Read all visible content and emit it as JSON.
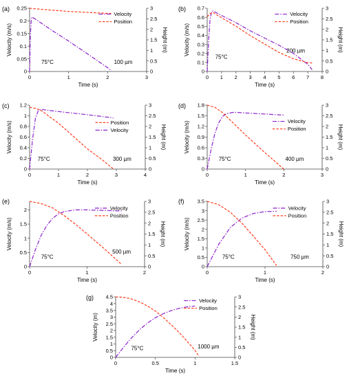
{
  "colors": {
    "velocity": "#8B1FCB",
    "position": "#FF3B1A",
    "axis": "#444444"
  },
  "chart_data": [
    {
      "type": "line",
      "panel_label": "(a)",
      "xlabel": "Time (s)",
      "ylabel_left": "Velocity (m/s)",
      "ylabel_right": "Height (m)",
      "xlim": [
        0,
        3
      ],
      "xticks": [
        "0",
        "1",
        "2",
        "3"
      ],
      "ylim_left": [
        0,
        0.25
      ],
      "yticks_left": [
        "0",
        "0.05",
        "0.1",
        "0.15",
        "0.2",
        "0.25"
      ],
      "ylim_right": [
        0,
        3
      ],
      "yticks_right": [
        "0",
        "0.5",
        "1",
        "1.5",
        "2",
        "2.5",
        "3"
      ],
      "temperature": "75°C",
      "size": "100 µm",
      "legend_position": "top-right",
      "legend": [
        "Velocity",
        "Position"
      ],
      "series": [
        {
          "name": "Velocity",
          "axis": "left",
          "x": [
            0,
            0.02,
            0.04,
            0.06,
            0.08,
            0.12,
            0.5,
            1.0,
            1.5,
            2.0,
            2.1
          ],
          "y": [
            0,
            0.14,
            0.2,
            0.215,
            0.213,
            0.21,
            0.17,
            0.12,
            0.068,
            0.015,
            0.003
          ]
        },
        {
          "name": "Position",
          "axis": "right",
          "x": [
            0,
            0.5,
            1.0,
            1.5,
            2.0,
            2.1
          ],
          "y": [
            3.0,
            2.92,
            2.85,
            2.8,
            2.76,
            2.75
          ]
        }
      ]
    },
    {
      "type": "line",
      "panel_label": "(b)",
      "xlabel": "Time (s)",
      "ylabel_left": "Velocity (m/s)",
      "ylabel_right": "Height (m)",
      "xlim": [
        0,
        8
      ],
      "xticks": [
        "0",
        "1",
        "2",
        "3",
        "4",
        "5",
        "6",
        "7",
        "8"
      ],
      "ylim_left": [
        0,
        0.7
      ],
      "yticks_left": [
        "0",
        "0.1",
        "0.2",
        "0.3",
        "0.4",
        "0.5",
        "0.6",
        "0.7"
      ],
      "ylim_right": [
        0,
        3
      ],
      "yticks_right": [
        "0",
        "0.5",
        "1",
        "1.5",
        "2",
        "2.5",
        "3"
      ],
      "temperature": "75°C",
      "size": "200 µm",
      "legend_position": "top-right",
      "legend": [
        "Velocity",
        "Position"
      ],
      "series": [
        {
          "name": "Velocity",
          "axis": "left",
          "x": [
            0,
            0.1,
            0.2,
            0.3,
            0.4,
            1,
            2,
            3,
            4,
            5,
            6,
            7,
            7.3
          ],
          "y": [
            0,
            0.35,
            0.58,
            0.66,
            0.67,
            0.62,
            0.54,
            0.45,
            0.37,
            0.29,
            0.2,
            0.08,
            0.02
          ]
        },
        {
          "name": "Position",
          "axis": "right",
          "x": [
            0,
            0.2,
            0.4,
            1,
            2,
            3,
            4,
            5,
            6,
            7,
            7.3
          ],
          "y": [
            2.6,
            2.75,
            2.8,
            2.55,
            2.15,
            1.7,
            1.3,
            0.9,
            0.6,
            0.42,
            0.4
          ]
        }
      ]
    },
    {
      "type": "line",
      "panel_label": "(c)",
      "xlabel": "Time (s)",
      "ylabel_left": "Velocity (m/s)",
      "ylabel_right": "Height (m)",
      "xlim": [
        0,
        4
      ],
      "xticks": [
        "0",
        "1",
        "2",
        "3",
        "4"
      ],
      "ylim_left": [
        0,
        1.2
      ],
      "yticks_left": [
        "0",
        "0.2",
        "0.4",
        "0.6",
        "0.8",
        "1",
        "1.2"
      ],
      "ylim_right": [
        0,
        3
      ],
      "yticks_right": [
        "0",
        "0.5",
        "1",
        "1.5",
        "2",
        "2.5",
        "3"
      ],
      "temperature": "75°C",
      "size": "300 µm",
      "legend_position": "right",
      "legend": [
        "Position",
        "Velocity"
      ],
      "series": [
        {
          "name": "Velocity",
          "axis": "left",
          "x": [
            0,
            0.1,
            0.2,
            0.3,
            0.4,
            1.0,
            2.0,
            2.9
          ],
          "y": [
            0,
            0.55,
            0.95,
            1.1,
            1.12,
            1.08,
            1.02,
            0.96
          ]
        },
        {
          "name": "Position",
          "axis": "right",
          "x": [
            0,
            0.2,
            0.4,
            1.0,
            1.5,
            2.0,
            2.5,
            2.9
          ],
          "y": [
            2.9,
            2.85,
            2.75,
            2.15,
            1.55,
            0.95,
            0.45,
            0.0
          ]
        }
      ]
    },
    {
      "type": "line",
      "panel_label": "(d)",
      "xlabel": "Time (s)",
      "ylabel_left": "Velocity (m/s)",
      "ylabel_right": "Height (m)",
      "xlim": [
        0,
        3
      ],
      "xticks": [
        "0",
        "1",
        "2",
        "3"
      ],
      "ylim_left": [
        0,
        1.8
      ],
      "yticks_left": [
        "0",
        "0.3",
        "0.6",
        "0.9",
        "1.2",
        "1.5",
        "1.8"
      ],
      "ylim_right": [
        0,
        3
      ],
      "yticks_right": [
        "0",
        "0.5",
        "1",
        "1.5",
        "2",
        "2.5",
        "3"
      ],
      "temperature": "75°C",
      "size": "400 µm",
      "legend_position": "right",
      "legend": [
        "Velocity",
        "Position"
      ],
      "series": [
        {
          "name": "Velocity",
          "axis": "left",
          "x": [
            0,
            0.1,
            0.2,
            0.3,
            0.4,
            0.5,
            0.7,
            1.0,
            1.5,
            2.0
          ],
          "y": [
            0,
            0.55,
            1.0,
            1.3,
            1.48,
            1.56,
            1.6,
            1.58,
            1.55,
            1.52
          ]
        },
        {
          "name": "Position",
          "axis": "right",
          "x": [
            0,
            0.2,
            0.4,
            0.6,
            1.0,
            1.5,
            2.0
          ],
          "y": [
            3.0,
            2.9,
            2.65,
            2.3,
            1.6,
            0.78,
            0.0
          ]
        }
      ]
    },
    {
      "type": "line",
      "panel_label": "(e)",
      "xlabel": "Time (s)",
      "ylabel_left": "Velocity (m/s)",
      "ylabel_right": "Height (m)",
      "xlim": [
        0,
        2
      ],
      "xticks": [
        "0",
        "1",
        "2"
      ],
      "ylim_left": [
        0,
        2.3
      ],
      "yticks_left": [
        "0",
        "0.5",
        "1",
        "1.5",
        "2"
      ],
      "ylim_right": [
        0,
        3
      ],
      "yticks_right": [
        "0",
        "0.5",
        "1",
        "1.5",
        "2",
        "2.5",
        "3"
      ],
      "temperature": "75°C",
      "size": "500 µm",
      "legend_position": "top-right",
      "legend": [
        "Velocity",
        "Position"
      ],
      "series": [
        {
          "name": "Velocity",
          "axis": "left",
          "x": [
            0,
            0.1,
            0.2,
            0.3,
            0.4,
            0.5,
            0.6,
            0.8,
            1.0,
            1.3,
            1.6
          ],
          "y": [
            0,
            0.6,
            1.1,
            1.45,
            1.7,
            1.86,
            1.94,
            2.0,
            2.0,
            1.98,
            1.96
          ]
        },
        {
          "name": "Position",
          "axis": "right",
          "x": [
            0,
            0.2,
            0.4,
            0.6,
            0.8,
            1.0,
            1.3,
            1.6
          ],
          "y": [
            3.0,
            2.9,
            2.7,
            2.35,
            1.95,
            1.5,
            0.82,
            0.1
          ]
        }
      ]
    },
    {
      "type": "line",
      "panel_label": "(f)",
      "xlabel": "Time (s)",
      "ylabel_left": "Velocity (m/s)",
      "ylabel_right": "Height (m)",
      "xlim": [
        0,
        2
      ],
      "xticks": [
        "0",
        "1",
        "2"
      ],
      "ylim_left": [
        0,
        3.5
      ],
      "yticks_left": [
        "0",
        "0.5",
        "1",
        "1.5",
        "2",
        "2.5",
        "3",
        "3.5"
      ],
      "ylim_right": [
        0,
        3
      ],
      "yticks_right": [
        "0",
        "0.5",
        "1",
        "1.5",
        "2",
        "2.5",
        "3"
      ],
      "temperature": "75°C",
      "size": "750 µm",
      "legend_position": "top-right",
      "legend": [
        "Velocity",
        "Position"
      ],
      "series": [
        {
          "name": "Velocity",
          "axis": "left",
          "x": [
            0,
            0.2,
            0.4,
            0.6,
            0.8,
            1.0,
            1.2
          ],
          "y": [
            0,
            1.2,
            2.1,
            2.6,
            2.85,
            2.95,
            2.97
          ]
        },
        {
          "name": "Position",
          "axis": "right",
          "x": [
            0,
            0.2,
            0.4,
            0.6,
            0.8,
            1.0,
            1.2
          ],
          "y": [
            3.0,
            2.85,
            2.5,
            2.0,
            1.4,
            0.78,
            0.05
          ]
        }
      ]
    },
    {
      "type": "line",
      "panel_label": "(g)",
      "xlabel": "Time (s)",
      "ylabel_left": "Velocity (m)",
      "ylabel_right": "Height (m)",
      "xlim": [
        0,
        1.5
      ],
      "xticks": [
        "0",
        "0.5",
        "1",
        "1.5"
      ],
      "ylim_left": [
        0,
        4.5
      ],
      "yticks_left": [
        "0",
        "0.5",
        "1",
        "1.5",
        "2",
        "2.5",
        "3",
        "3.5",
        "4",
        "4.5"
      ],
      "ylim_right": [
        0,
        3
      ],
      "yticks_right": [
        "0",
        "0.5",
        "1",
        "1.5",
        "2",
        "2.5",
        "3"
      ],
      "temperature": "75°C",
      "size": "1000 µm",
      "legend_position": "top-right",
      "legend": [
        "Velocity",
        "Position"
      ],
      "series": [
        {
          "name": "Velocity",
          "axis": "left",
          "x": [
            0,
            0.1,
            0.2,
            0.3,
            0.4,
            0.5,
            0.6,
            0.7,
            0.8,
            0.9,
            1.0
          ],
          "y": [
            0,
            0.75,
            1.45,
            2.05,
            2.55,
            2.95,
            3.25,
            3.48,
            3.65,
            3.76,
            3.82
          ]
        },
        {
          "name": "Position",
          "axis": "right",
          "x": [
            0,
            0.1,
            0.2,
            0.3,
            0.4,
            0.5,
            0.6,
            0.7,
            0.8,
            0.9,
            1.0,
            1.05
          ],
          "y": [
            3.0,
            2.98,
            2.9,
            2.75,
            2.55,
            2.3,
            1.98,
            1.62,
            1.23,
            0.8,
            0.35,
            0.05
          ]
        }
      ]
    }
  ]
}
